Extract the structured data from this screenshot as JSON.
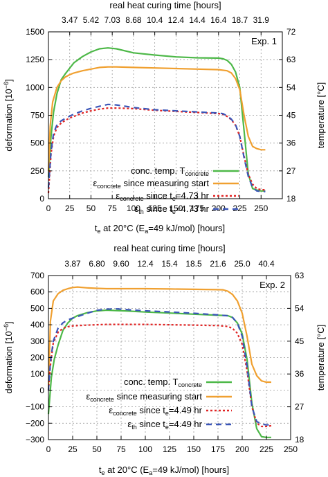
{
  "colors": {
    "green": "#4db848",
    "orange": "#f0a030",
    "red": "#e02424",
    "blue": "#3a55b8",
    "grid": "#9a9a9a"
  },
  "chart_data": [
    {
      "type": "line",
      "annotation": "Exp. 1",
      "xlabel_parts": [
        "t",
        "e",
        " at 20°C (E",
        "a",
        "=49 kJ/mol) [hours]"
      ],
      "top_label": "real heat curing time [hours]",
      "ylabel_parts": [
        "deformation [10",
        "−6",
        "]"
      ],
      "y2label": "temperature [°C]",
      "xlim": [
        0,
        275
      ],
      "ylim": [
        0,
        1500
      ],
      "y2lim": [
        18,
        72
      ],
      "xticks": [
        0,
        25,
        50,
        75,
        100,
        125,
        150,
        175,
        200,
        225,
        250
      ],
      "yticks": [
        0,
        250,
        500,
        750,
        1000,
        1250,
        1500
      ],
      "y2ticks": [
        18,
        27,
        36,
        45,
        54,
        63,
        72
      ],
      "top_ticks": [
        "3.47",
        "5.42",
        "7.03",
        "8.68",
        "10.4",
        "12.4",
        "14.4",
        "16.4",
        "18.7",
        "31.9"
      ],
      "legend": [
        {
          "parts": [
            "conc. temp. T",
            "concrete"
          ],
          "style": "solid",
          "color": "green"
        },
        {
          "parts": [
            "ε",
            "concrete",
            " since measuring start"
          ],
          "style": "solid",
          "color": "orange"
        },
        {
          "parts": [
            "ε",
            "concrete",
            " since t",
            "e",
            "=4.73 hr"
          ],
          "style": "dot",
          "color": "red"
        },
        {
          "parts": [
            "ε",
            "th",
            " since t",
            "e",
            "=4.73 hr"
          ],
          "style": "dash",
          "color": "blue"
        }
      ],
      "series": [
        {
          "name": "conc. temp. Tconcrete",
          "color": "green",
          "style": "solid",
          "x": [
            0,
            3,
            6,
            10,
            15,
            20,
            30,
            40,
            50,
            60,
            70,
            80,
            100,
            125,
            150,
            175,
            200,
            205,
            210,
            215,
            220,
            225,
            230,
            235,
            240,
            245,
            250,
            255
          ],
          "y": [
            25,
            38,
            46,
            52,
            56.5,
            58.5,
            62,
            64,
            65.5,
            66.5,
            66.8,
            66.5,
            65.2,
            64.5,
            63.9,
            63.6,
            63.5,
            63.3,
            62.8,
            61.5,
            59,
            54,
            40,
            26,
            21.3,
            20.8,
            20.5,
            20.5
          ]
        },
        {
          "name": "εconcrete since measuring start",
          "color": "orange",
          "style": "solid",
          "x": [
            0,
            2,
            5,
            10,
            15,
            20,
            25,
            30,
            40,
            50,
            60,
            70,
            80,
            100,
            125,
            150,
            175,
            200,
            210,
            215,
            220,
            225,
            230,
            235,
            240,
            245,
            250,
            255
          ],
          "y": [
            250,
            650,
            870,
            1000,
            1060,
            1095,
            1115,
            1130,
            1150,
            1165,
            1180,
            1185,
            1185,
            1180,
            1175,
            1170,
            1165,
            1160,
            1150,
            1130,
            1080,
            980,
            750,
            560,
            470,
            450,
            440,
            440
          ]
        },
        {
          "name": "εconcrete since te=4.73 hr",
          "color": "red",
          "style": "dot",
          "x": [
            0,
            3,
            6,
            10,
            15,
            20,
            25,
            30,
            40,
            50,
            60,
            70,
            80,
            100,
            125,
            150,
            175,
            200,
            205,
            210,
            215,
            220,
            225,
            230,
            235,
            240,
            245,
            250,
            255
          ],
          "y": [
            50,
            400,
            560,
            640,
            680,
            705,
            725,
            740,
            770,
            790,
            805,
            815,
            815,
            810,
            795,
            785,
            775,
            765,
            760,
            740,
            710,
            660,
            560,
            380,
            220,
            130,
            90,
            80,
            80
          ]
        },
        {
          "name": "εth since te=4.73 hr",
          "color": "blue",
          "style": "dash",
          "x": [
            0,
            3,
            6,
            10,
            15,
            20,
            25,
            30,
            40,
            50,
            60,
            70,
            80,
            100,
            125,
            150,
            175,
            200,
            205,
            210,
            215,
            220,
            225,
            230,
            235,
            240,
            245,
            250,
            255
          ],
          "y": [
            100,
            420,
            590,
            665,
            700,
            722,
            742,
            760,
            790,
            812,
            830,
            848,
            843,
            820,
            800,
            790,
            780,
            770,
            765,
            745,
            715,
            665,
            560,
            370,
            200,
            100,
            70,
            65,
            65
          ]
        }
      ]
    },
    {
      "type": "line",
      "annotation": "Exp. 2",
      "xlabel_parts": [
        "t",
        "e",
        " at 20°C (E",
        "a",
        "=49 kJ/mol) [hours]"
      ],
      "top_label": "real heat curing time [hours]",
      "ylabel_parts": [
        "deformation [10",
        "−6",
        "]"
      ],
      "y2label": "temperature [°C]",
      "xlim": [
        0,
        250
      ],
      "ylim": [
        -300,
        700
      ],
      "y2lim": [
        18,
        63
      ],
      "xticks": [
        0,
        25,
        50,
        75,
        100,
        125,
        150,
        175,
        200,
        225,
        250
      ],
      "yticks": [
        -300,
        -200,
        -100,
        0,
        100,
        200,
        300,
        400,
        500,
        600,
        700
      ],
      "y2ticks": [
        18,
        27,
        36,
        45,
        54,
        63
      ],
      "top_ticks": [
        "3.87",
        "6.80",
        "9.60",
        "12.4",
        "15.4",
        "18.5",
        "21.6",
        "25.0",
        "40.4"
      ],
      "legend": [
        {
          "parts": [
            "conc. temp. T",
            "concrete"
          ],
          "style": "solid",
          "color": "green"
        },
        {
          "parts": [
            "ε",
            "concrete",
            " since measuring start"
          ],
          "style": "solid",
          "color": "orange"
        },
        {
          "parts": [
            "ε",
            "concrete",
            " since t",
            "e",
            "=4.49 hr"
          ],
          "style": "dot",
          "color": "red"
        },
        {
          "parts": [
            "ε",
            "th",
            " since t",
            "e",
            "=4.49 hr"
          ],
          "style": "dash",
          "color": "blue"
        }
      ],
      "series": [
        {
          "name": "conc. temp. Tconcrete",
          "color": "green",
          "style": "solid",
          "x": [
            0,
            3,
            6,
            10,
            15,
            20,
            25,
            30,
            40,
            50,
            60,
            70,
            80,
            100,
            125,
            150,
            175,
            185,
            190,
            195,
            200,
            205,
            210,
            215,
            220,
            225,
            230
          ],
          "y": [
            25,
            35,
            40,
            44,
            48,
            50,
            51.3,
            52,
            52.8,
            53.3,
            53.5,
            53.4,
            53.3,
            53,
            52.7,
            52.4,
            52.1,
            52,
            51.5,
            50,
            47,
            40,
            28,
            21,
            18.8,
            18.6,
            18.6
          ]
        },
        {
          "name": "εconcrete since measuring start",
          "color": "orange",
          "style": "solid",
          "x": [
            0,
            2,
            5,
            10,
            15,
            20,
            25,
            30,
            40,
            50,
            60,
            80,
            100,
            125,
            150,
            175,
            180,
            185,
            190,
            195,
            200,
            205,
            210,
            215,
            220,
            225,
            230
          ],
          "y": [
            0,
            420,
            545,
            590,
            610,
            620,
            627,
            630,
            625,
            622,
            620,
            620,
            620,
            618,
            616,
            614,
            613,
            605,
            585,
            545,
            470,
            330,
            160,
            90,
            58,
            50,
            50
          ]
        },
        {
          "name": "εconcrete since te=4.49 hr",
          "color": "red",
          "style": "dot",
          "x": [
            0,
            2,
            5,
            10,
            15,
            20,
            25,
            30,
            40,
            50,
            60,
            80,
            100,
            125,
            150,
            175,
            185,
            190,
            195,
            200,
            205,
            210,
            215,
            220,
            225,
            230
          ],
          "y": [
            0,
            150,
            290,
            355,
            378,
            388,
            393,
            395,
            398,
            400,
            402,
            402,
            402,
            400,
            398,
            395,
            390,
            378,
            348,
            280,
            120,
            -100,
            -200,
            -220,
            -220,
            -215
          ]
        },
        {
          "name": "εth since te=4.49 hr",
          "color": "blue",
          "style": "dash",
          "x": [
            0,
            2,
            5,
            10,
            15,
            20,
            25,
            30,
            40,
            50,
            60,
            70,
            80,
            100,
            125,
            150,
            175,
            185,
            190,
            195,
            200,
            205,
            210,
            215,
            220,
            225,
            230
          ],
          "y": [
            0,
            170,
            300,
            380,
            412,
            430,
            440,
            450,
            470,
            488,
            495,
            497,
            493,
            485,
            478,
            470,
            460,
            455,
            445,
            410,
            330,
            150,
            -100,
            -190,
            -205,
            -210,
            -210
          ]
        }
      ]
    }
  ]
}
